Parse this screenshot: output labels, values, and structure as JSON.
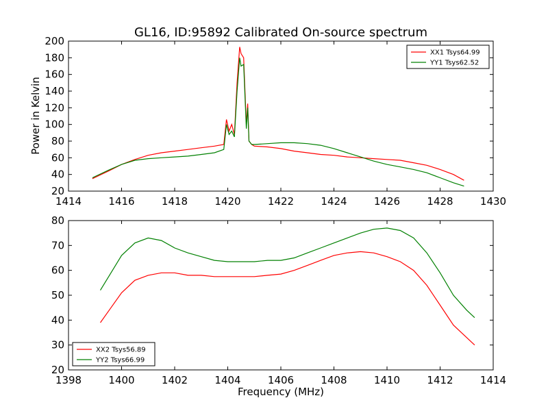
{
  "chart_data": [
    {
      "type": "line",
      "title": "GL16, ID:95892 Calibrated On-source spectrum",
      "xlabel": "",
      "ylabel": "Power in Kelvin",
      "xlim": [
        1414,
        1430
      ],
      "ylim": [
        20,
        200
      ],
      "xticks": [
        1414,
        1416,
        1418,
        1420,
        1422,
        1424,
        1426,
        1428,
        1430
      ],
      "yticks": [
        20,
        40,
        60,
        80,
        100,
        120,
        140,
        160,
        180,
        200
      ],
      "legend": "top-right",
      "series": [
        {
          "name": "XX1 Tsys64.99",
          "color": "#ff0000",
          "x": [
            1414.9,
            1415.5,
            1416.0,
            1416.5,
            1417.0,
            1417.5,
            1418.0,
            1418.5,
            1419.0,
            1419.5,
            1419.85,
            1419.95,
            1420.05,
            1420.15,
            1420.25,
            1420.35,
            1420.45,
            1420.5,
            1420.6,
            1420.7,
            1420.75,
            1420.8,
            1420.9,
            1421.0,
            1421.5,
            1422.0,
            1422.5,
            1423.0,
            1423.5,
            1424.0,
            1424.5,
            1425.0,
            1425.5,
            1426.0,
            1426.5,
            1427.0,
            1427.5,
            1428.0,
            1428.5,
            1428.9
          ],
          "values": [
            35,
            44,
            52,
            58,
            63,
            66,
            68,
            70,
            72,
            74,
            76,
            106,
            92,
            100,
            88,
            150,
            193,
            185,
            180,
            100,
            125,
            80,
            76,
            74,
            73,
            71,
            68,
            66,
            64,
            63,
            61,
            60,
            59,
            58,
            57,
            54,
            51,
            46,
            40,
            33
          ]
        },
        {
          "name": "YY1 Tsys62.52",
          "color": "#008000",
          "x": [
            1414.9,
            1415.5,
            1416.0,
            1416.5,
            1417.0,
            1417.5,
            1418.0,
            1418.5,
            1419.0,
            1419.5,
            1419.85,
            1419.95,
            1420.05,
            1420.15,
            1420.25,
            1420.35,
            1420.45,
            1420.5,
            1420.6,
            1420.7,
            1420.75,
            1420.8,
            1420.9,
            1421.0,
            1421.5,
            1422.0,
            1422.5,
            1423.0,
            1423.5,
            1424.0,
            1424.5,
            1425.0,
            1425.5,
            1426.0,
            1426.5,
            1427.0,
            1427.5,
            1428.0,
            1428.5,
            1428.9
          ],
          "values": [
            36,
            45,
            52,
            57,
            59,
            60,
            61,
            62,
            64,
            66,
            70,
            100,
            88,
            92,
            85,
            140,
            180,
            170,
            172,
            95,
            120,
            80,
            76,
            76,
            77,
            78,
            78,
            77,
            75,
            71,
            66,
            61,
            56,
            52,
            49,
            46,
            42,
            36,
            30,
            26
          ]
        }
      ]
    },
    {
      "type": "line",
      "title": "",
      "xlabel": "Frequency (MHz)",
      "ylabel": "",
      "xlim": [
        1398,
        1414
      ],
      "ylim": [
        20,
        80
      ],
      "xticks": [
        1398,
        1400,
        1402,
        1404,
        1406,
        1408,
        1410,
        1412,
        1414
      ],
      "yticks": [
        20,
        30,
        40,
        50,
        60,
        70,
        80
      ],
      "legend": "bottom-left",
      "series": [
        {
          "name": "XX2 Tsys56.89",
          "color": "#ff0000",
          "x": [
            1399.2,
            1399.6,
            1400.0,
            1400.5,
            1401.0,
            1401.5,
            1402.0,
            1402.5,
            1403.0,
            1403.5,
            1404.0,
            1404.5,
            1405.0,
            1405.5,
            1406.0,
            1406.5,
            1407.0,
            1407.5,
            1408.0,
            1408.5,
            1409.0,
            1409.5,
            1410.0,
            1410.5,
            1411.0,
            1411.5,
            1412.0,
            1412.5,
            1413.0,
            1413.3
          ],
          "values": [
            39,
            45,
            51,
            56,
            58,
            59,
            59,
            58,
            58,
            57.5,
            57.5,
            57.5,
            57.5,
            58,
            58.5,
            60,
            62,
            64,
            66,
            67,
            67.5,
            67,
            65.5,
            63.5,
            60,
            54,
            46,
            38,
            33,
            30
          ]
        },
        {
          "name": "YY2 Tsys66.99",
          "color": "#008000",
          "x": [
            1399.2,
            1399.6,
            1400.0,
            1400.5,
            1401.0,
            1401.5,
            1402.0,
            1402.5,
            1403.0,
            1403.5,
            1404.0,
            1404.5,
            1405.0,
            1405.5,
            1406.0,
            1406.5,
            1407.0,
            1407.5,
            1408.0,
            1408.5,
            1409.0,
            1409.5,
            1410.0,
            1410.5,
            1411.0,
            1411.5,
            1412.0,
            1412.5,
            1413.0,
            1413.3
          ],
          "values": [
            52,
            59,
            66,
            71,
            73,
            72,
            69,
            67,
            65.5,
            64,
            63.5,
            63.5,
            63.5,
            64,
            64,
            65,
            67,
            69,
            71,
            73,
            75,
            76.5,
            77,
            76,
            73,
            67,
            59,
            50,
            44,
            41
          ]
        }
      ]
    }
  ]
}
